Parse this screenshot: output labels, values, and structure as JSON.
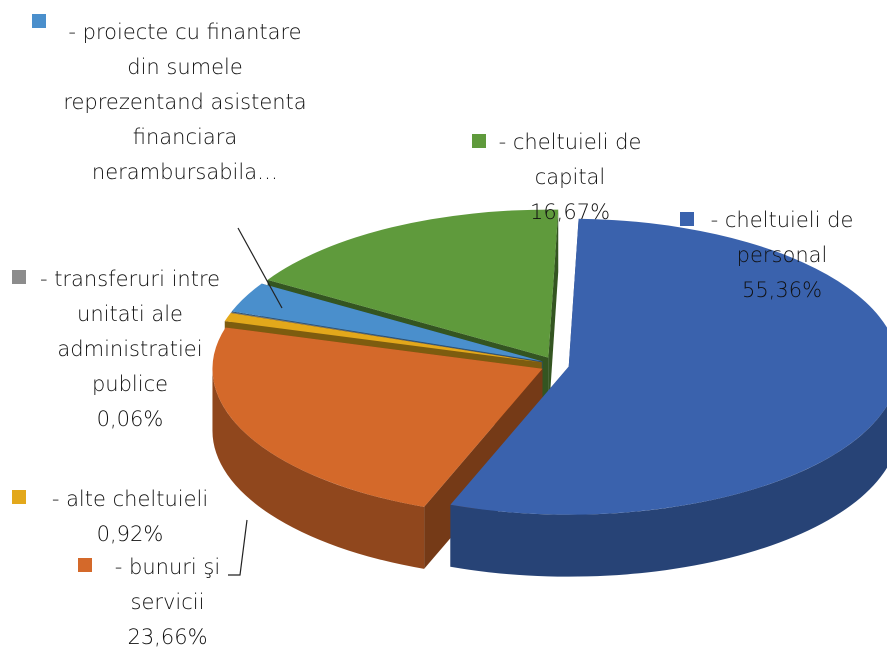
{
  "chart_data": {
    "type": "pie3d",
    "categories": [
      "- cheltuieli de personal",
      "- bunuri şi servicii",
      "- alte cheltuieli",
      "- transferuri intre unitati ale administratiei publice",
      "- proiecte cu finantare din sumele reprezentand asistenta financiara nerambursabila…",
      "- cheltuieli de capital"
    ],
    "values": [
      55.36,
      23.66,
      0.92,
      0.06,
      3.33,
      16.67
    ],
    "value_labels": [
      "55,36%",
      "23,66%",
      "0,92%",
      "0,06%",
      null,
      "16,67%"
    ],
    "colors": [
      "#3a62ad",
      "#d4692a",
      "#e3a81b",
      "#8c8c8c",
      "#4a8fcc",
      "#5f9a3c"
    ]
  }
}
